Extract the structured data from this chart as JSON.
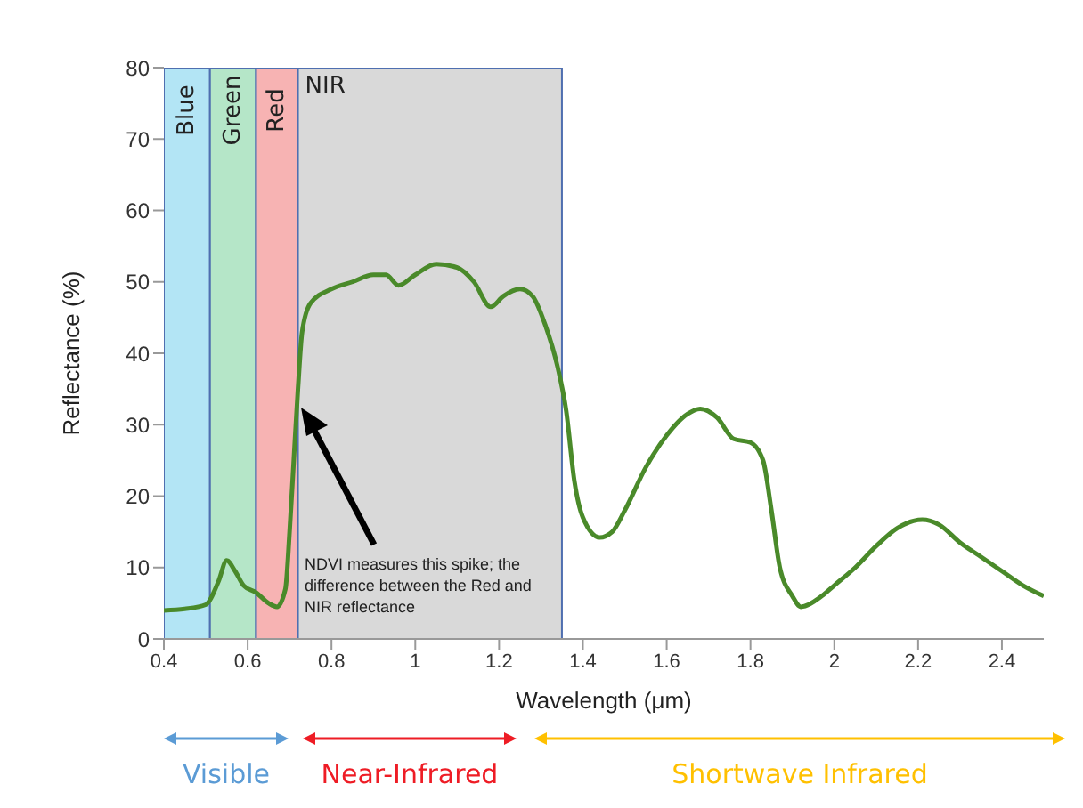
{
  "chart_data": {
    "type": "line",
    "xlabel": "Wavelength (μm)",
    "ylabel": "Reflectance (%)",
    "x": [
      0.4,
      0.45,
      0.5,
      0.53,
      0.55,
      0.57,
      0.59,
      0.62,
      0.65,
      0.67,
      0.69,
      0.7,
      0.71,
      0.72,
      0.73,
      0.75,
      0.8,
      0.85,
      0.9,
      0.93,
      0.96,
      1.0,
      1.05,
      1.1,
      1.14,
      1.18,
      1.21,
      1.25,
      1.28,
      1.31,
      1.34,
      1.36,
      1.38,
      1.4,
      1.44,
      1.47,
      1.5,
      1.55,
      1.6,
      1.65,
      1.68,
      1.72,
      1.76,
      1.8,
      1.83,
      1.85,
      1.87,
      1.9,
      1.92,
      1.97,
      2.0,
      2.05,
      2.1,
      2.15,
      2.21,
      2.25,
      2.3,
      2.35,
      2.4,
      2.45,
      2.5
    ],
    "series": [
      {
        "color": "#4a8a2a",
        "values": [
          4,
          4.2,
          4.8,
          8,
          11,
          9.5,
          7.5,
          6.5,
          5,
          4.5,
          7,
          15,
          25,
          35,
          43,
          47,
          49,
          50,
          51,
          51,
          49.5,
          51,
          52.5,
          52,
          50,
          46.5,
          48,
          49,
          48,
          44,
          38,
          32,
          22,
          17,
          14.2,
          15,
          18,
          24,
          28.5,
          31.5,
          32.2,
          31,
          28,
          27.5,
          25,
          18,
          10,
          6,
          4.5,
          6,
          7.5,
          10,
          13,
          15.5,
          16.7,
          16,
          13.5,
          11.5,
          9.5,
          7.5,
          6
        ]
      }
    ],
    "xlim": [
      0.4,
      2.5
    ],
    "xticks": [
      0.4,
      0.6,
      0.8,
      1,
      1.2,
      1.4,
      1.6,
      1.8,
      2,
      2.2,
      2.4
    ],
    "ylim": [
      0,
      80
    ],
    "yticks": [
      0,
      10,
      20,
      30,
      40,
      50,
      60,
      70,
      80
    ],
    "bands": [
      {
        "axis": "x",
        "from": 0.4,
        "to": 0.51,
        "label": "Blue",
        "color": "#b3e5f5"
      },
      {
        "axis": "x",
        "from": 0.51,
        "to": 0.62,
        "label": "Green",
        "color": "#b5e6c8"
      },
      {
        "axis": "x",
        "from": 0.62,
        "to": 0.72,
        "label": "Red",
        "color": "#f7b3b3"
      },
      {
        "axis": "x",
        "from": 0.72,
        "to": 1.35,
        "label": "NIR",
        "color": "#d9d9d9"
      }
    ],
    "annotations": [
      "NDVI measures this spike; the difference between the Red and NIR reflectance",
      "Visible",
      "Near-Infrared",
      "Shortwave Infrared"
    ],
    "grid": false,
    "legend": false,
    "marker": "none",
    "line_style": "solid"
  }
}
